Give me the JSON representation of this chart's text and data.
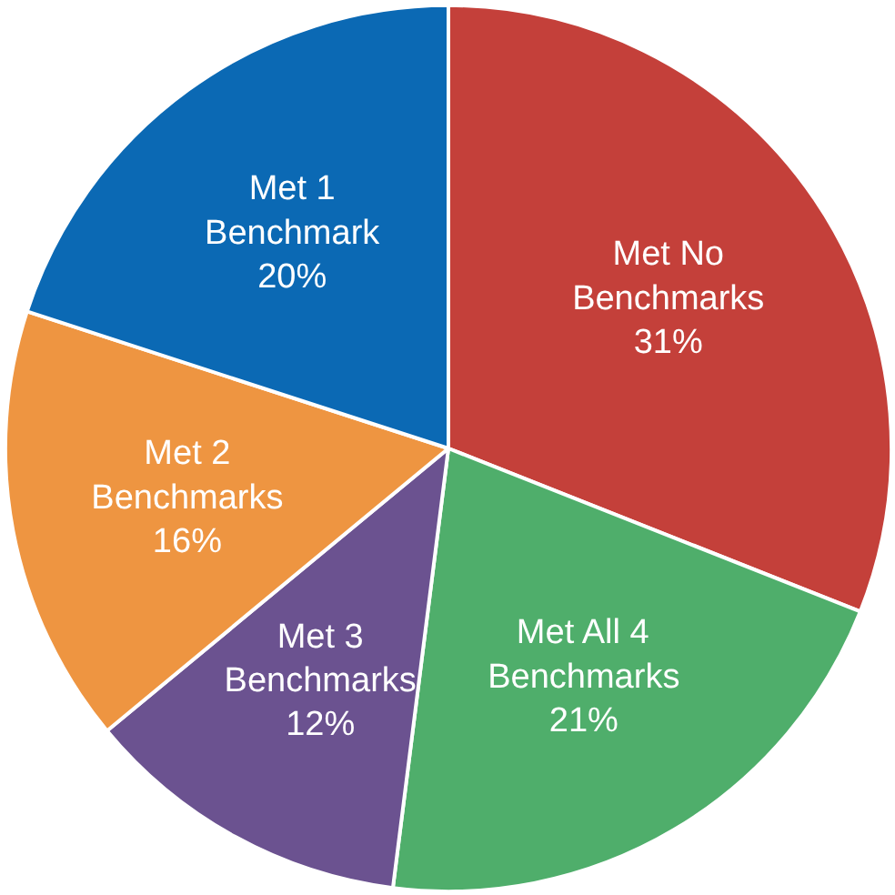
{
  "chart_data": {
    "type": "pie",
    "categories": [
      "Met No Benchmarks",
      "Met All 4 Benchmarks",
      "Met 3 Benchmarks",
      "Met 2 Benchmarks",
      "Met 1 Benchmark"
    ],
    "values": [
      31,
      21,
      12,
      16,
      20
    ],
    "value_labels": [
      "31%",
      "21%",
      "12%",
      "16%",
      "20%"
    ],
    "colors": [
      "#c4403a",
      "#4fae6b",
      "#6b5290",
      "#ee9541",
      "#0b69b4"
    ],
    "legend": false
  }
}
